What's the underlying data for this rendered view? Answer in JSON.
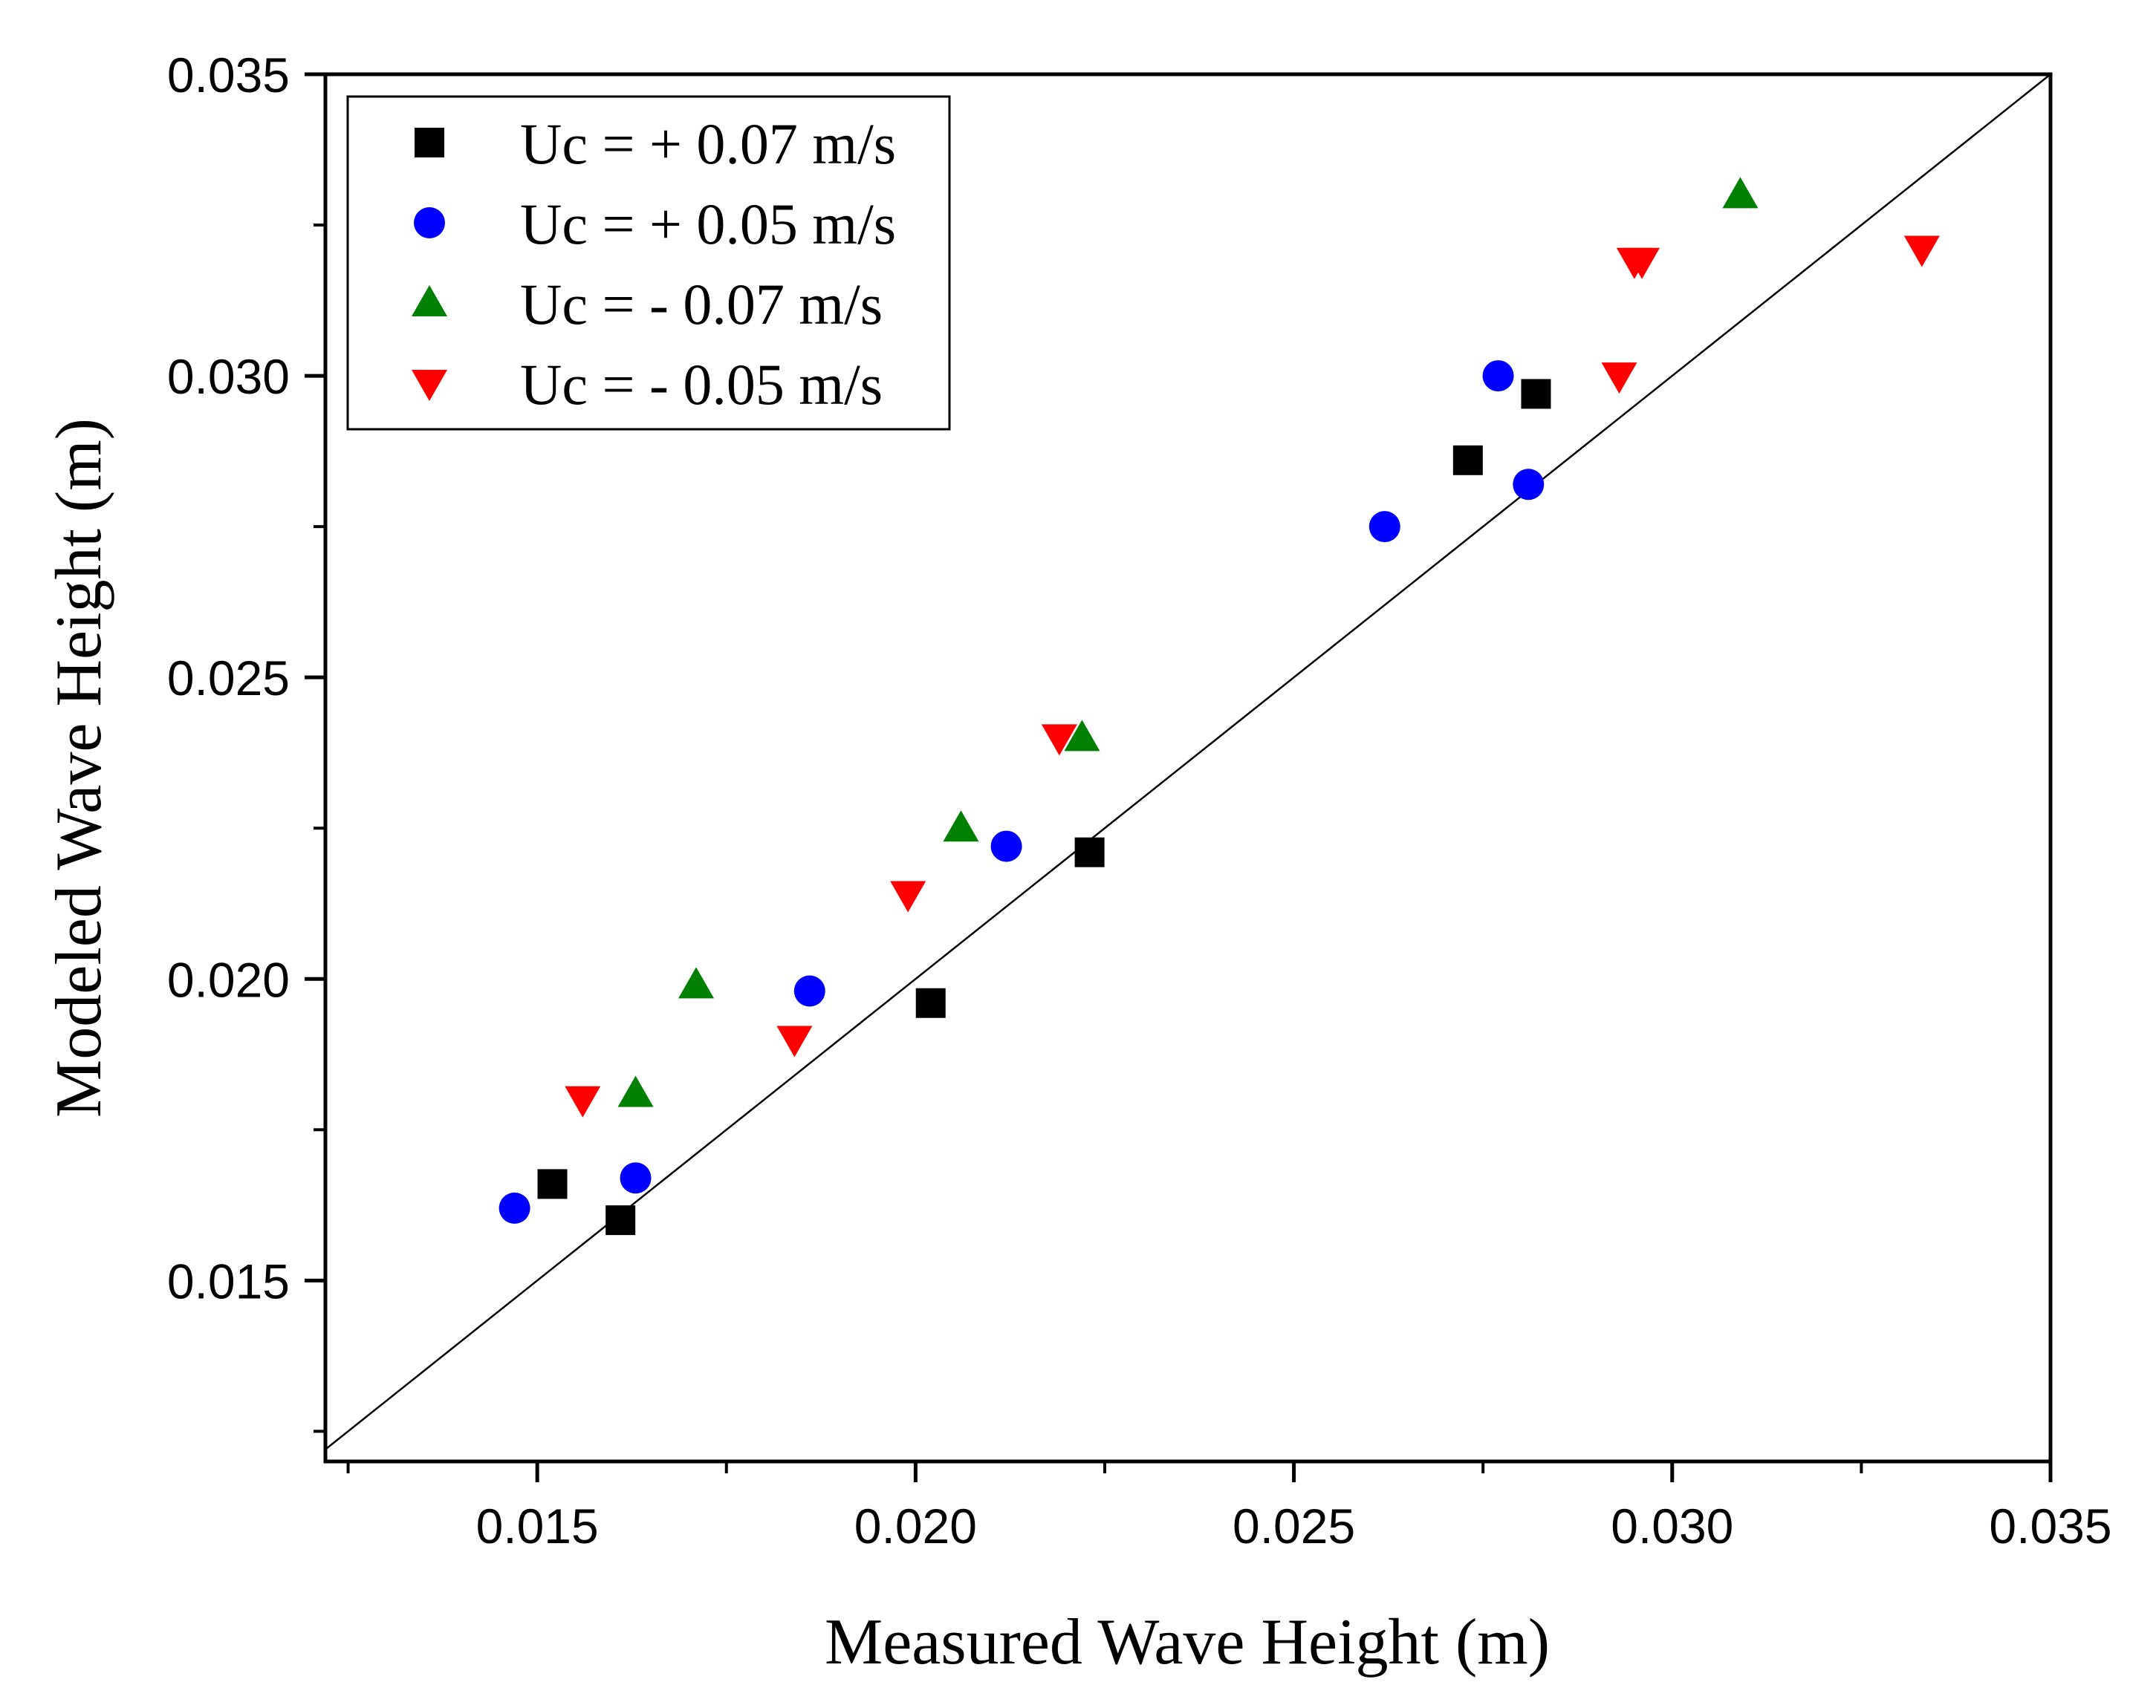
{
  "chart_data": {
    "type": "scatter",
    "title": "",
    "xlabel": "Measured Wave Height (m)",
    "ylabel": "Modeled Wave Height (m)",
    "xlim": [
      0.0122,
      0.035
    ],
    "ylim": [
      0.012,
      0.035
    ],
    "x_ticks": [
      "0.015",
      "0.020",
      "0.025",
      "0.030",
      "0.035"
    ],
    "y_ticks": [
      "0.015",
      "0.020",
      "0.025",
      "0.030",
      "0.035"
    ],
    "x_tick_values": [
      0.015,
      0.02,
      0.025,
      0.03,
      0.035
    ],
    "y_tick_values": [
      0.015,
      0.02,
      0.025,
      0.03,
      0.035
    ],
    "reference_line": "y = x",
    "legend_position": "top-left",
    "grid": false,
    "series": [
      {
        "name": "Uc = + 0.07 m/s",
        "marker": "square",
        "color": "#000000",
        "points": [
          [
            0.0152,
            0.0166
          ],
          [
            0.0161,
            0.016
          ],
          [
            0.0202,
            0.0196
          ],
          [
            0.0223,
            0.0221
          ],
          [
            0.0273,
            0.0286
          ],
          [
            0.0282,
            0.0297
          ]
        ]
      },
      {
        "name": "Uc = + 0.05 m/s",
        "marker": "circle",
        "color": "#0000ff",
        "points": [
          [
            0.0147,
            0.0162
          ],
          [
            0.0163,
            0.0167
          ],
          [
            0.0186,
            0.0198
          ],
          [
            0.0212,
            0.0222
          ],
          [
            0.0262,
            0.0275
          ],
          [
            0.0277,
            0.03
          ],
          [
            0.0281,
            0.0282
          ]
        ]
      },
      {
        "name": "Uc = - 0.07 m/s",
        "marker": "triangle-up",
        "color": "#008000",
        "points": [
          [
            0.0163,
            0.0181
          ],
          [
            0.0171,
            0.0199
          ],
          [
            0.0206,
            0.0225
          ],
          [
            0.0222,
            0.024
          ],
          [
            0.0309,
            0.033
          ]
        ]
      },
      {
        "name": "Uc = - 0.05 m/s",
        "marker": "triangle-down",
        "color": "#ff0000",
        "points": [
          [
            0.0156,
            0.018
          ],
          [
            0.0184,
            0.019
          ],
          [
            0.0199,
            0.0214
          ],
          [
            0.0219,
            0.024
          ],
          [
            0.0293,
            0.03
          ],
          [
            0.0295,
            0.0319
          ],
          [
            0.0296,
            0.0319
          ],
          [
            0.0333,
            0.0321
          ]
        ]
      }
    ]
  }
}
